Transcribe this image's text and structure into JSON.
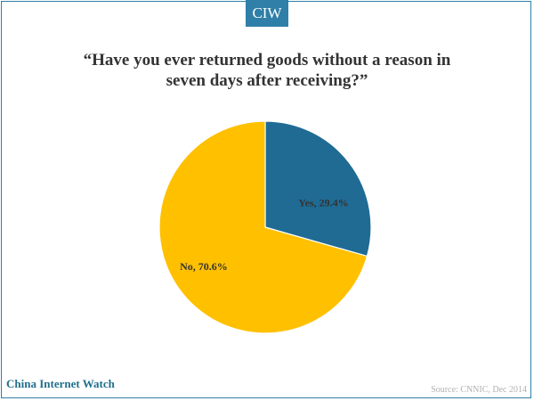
{
  "brand_badge": "CIW",
  "chart_data": {
    "type": "pie",
    "title": "“Have you ever returned goods without a reason in seven days after receiving?”",
    "title_lines": [
      "“Have you ever returned goods without a reason in",
      "seven days after receiving?”"
    ],
    "slices": [
      {
        "label": "Yes, 29.4%",
        "value": 29.4,
        "color": "#1f6b94"
      },
      {
        "label": "No, 70.6%",
        "value": 70.6,
        "color": "#ffc000"
      }
    ],
    "legend": "none"
  },
  "footer": {
    "brand": "China Internet Watch",
    "source": "Source: CNNIC, Dec 2014"
  }
}
